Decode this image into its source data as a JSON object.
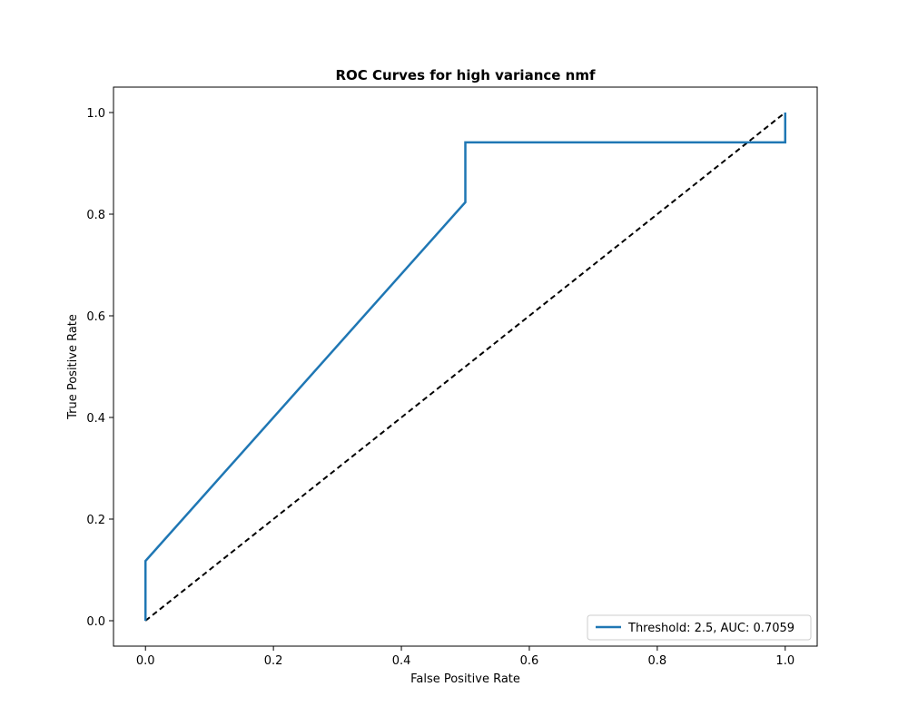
{
  "chart_data": {
    "type": "line",
    "title": "ROC Curves for high variance nmf",
    "xlabel": "False Positive Rate",
    "ylabel": "True Positive Rate",
    "xlim": [
      -0.05,
      1.05
    ],
    "ylim": [
      -0.05,
      1.05
    ],
    "xticks": [
      0.0,
      0.2,
      0.4,
      0.6,
      0.8,
      1.0
    ],
    "xtick_labels": [
      "0.0",
      "0.2",
      "0.4",
      "0.6",
      "0.8",
      "1.0"
    ],
    "yticks": [
      0.0,
      0.2,
      0.4,
      0.6,
      0.8,
      1.0
    ],
    "ytick_labels": [
      "0.0",
      "0.2",
      "0.4",
      "0.6",
      "0.8",
      "1.0"
    ],
    "grid": false,
    "legend_position": "lower right",
    "series": [
      {
        "name": "Threshold: 2.5, AUC: 0.7059",
        "color": "#1f77b4",
        "style": "solid",
        "x": [
          0.0,
          0.0,
          0.5,
          0.5,
          1.0,
          1.0
        ],
        "y": [
          0.0,
          0.1176,
          0.8235,
          0.9412,
          0.9412,
          1.0
        ]
      }
    ],
    "reference_line": {
      "color": "#000000",
      "style": "dashed",
      "x": [
        0.0,
        1.0
      ],
      "y": [
        0.0,
        1.0
      ]
    }
  }
}
